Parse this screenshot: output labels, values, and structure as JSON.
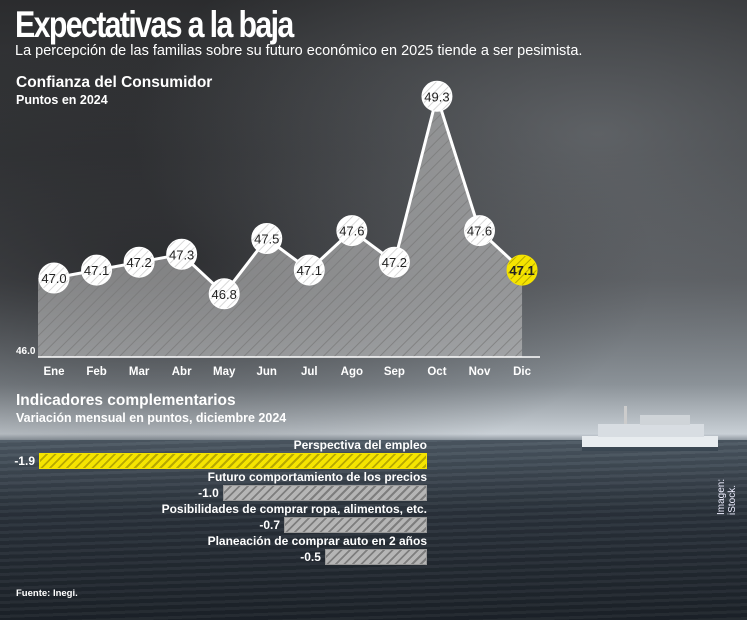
{
  "header": {
    "title": "Expectativas a la baja",
    "subtitle": "La percepción de las familias sobre su futuro económico en 2025 tiende a ser pesimista."
  },
  "chart_data": [
    {
      "type": "area",
      "title": "Confianza del Consumidor",
      "subtitle": "Puntos en 2024",
      "categories": [
        "Ene",
        "Feb",
        "Mar",
        "Abr",
        "May",
        "Jun",
        "Jul",
        "Ago",
        "Sep",
        "Oct",
        "Nov",
        "Dic"
      ],
      "values": [
        47.0,
        47.1,
        47.2,
        47.3,
        46.8,
        47.5,
        47.1,
        47.6,
        47.2,
        49.3,
        47.6,
        47.1
      ],
      "labels": [
        "47.0",
        "47.1",
        "47.2",
        "47.3",
        "46.8",
        "47.5",
        "47.1",
        "47.6",
        "47.2",
        "49.3",
        "47.6",
        "47.1"
      ],
      "ymin_label": "46.0",
      "ylim": [
        46.0,
        49.3
      ],
      "highlight_color": "#f5e400",
      "highlight_index": 11
    },
    {
      "type": "bar",
      "title": "Indicadores complementarios",
      "subtitle": "Variación mensual en puntos, diciembre 2024",
      "categories": [
        "Perspectiva del empleo",
        "Futuro comportamiento de los precios",
        "Posibilidades de comprar ropa, alimentos, etc.",
        "Planeación de comprar auto en 2 años"
      ],
      "values": [
        -1.9,
        -1.0,
        -0.7,
        -0.5
      ],
      "labels": [
        "-1.9",
        "-1.0",
        "-0.7",
        "-0.5"
      ],
      "highlight_color": "#f5e400"
    }
  ],
  "source": "Fuente: Inegi.",
  "credit": "Imagen: iStock."
}
